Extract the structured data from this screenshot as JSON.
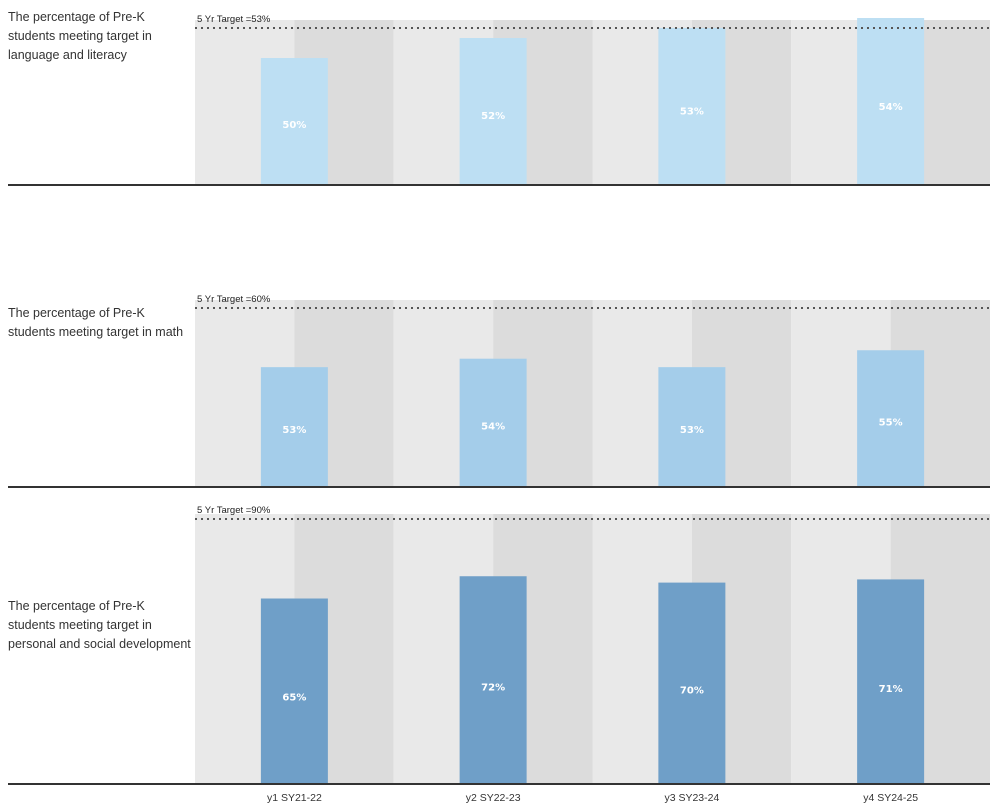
{
  "chart_data": [
    {
      "type": "bar",
      "title": "The percentage of Pre-K students meeting target in language and literacy",
      "target_label": "5 Yr Target =53%",
      "target": 53,
      "categories": [
        "y1 SY21-22",
        "y2 SY22-23",
        "y3 SY23-24",
        "y4 SY24-25"
      ],
      "values": [
        50,
        52,
        53,
        54
      ],
      "value_labels": [
        "50%",
        "52%",
        "53%",
        "54%"
      ],
      "color": "#bddff3"
    },
    {
      "type": "bar",
      "title": "The percentage of Pre-K students meeting target in math",
      "target_label": "5 Yr Target =60%",
      "target": 60,
      "categories": [
        "y1 SY21-22",
        "y2 SY22-23",
        "y3 SY23-24",
        "y4 SY24-25"
      ],
      "values": [
        53,
        54,
        53,
        55
      ],
      "value_labels": [
        "53%",
        "54%",
        "53%",
        "55%"
      ],
      "color": "#a4cdea"
    },
    {
      "type": "bar",
      "title": "The percentage of Pre-K students meeting target in personal and social development",
      "target_label": "5 Yr Target =90%",
      "target": 90,
      "categories": [
        "y1 SY21-22",
        "y2 SY22-23",
        "y3 SY23-24",
        "y4 SY24-25"
      ],
      "values": [
        65,
        72,
        70,
        71
      ],
      "value_labels": [
        "65%",
        "72%",
        "70%",
        "71%"
      ],
      "color": "#6f9fc8"
    }
  ],
  "x_tick_labels": [
    "y1 SY21-22",
    "y2 SY22-23",
    "y3 SY23-24",
    "y4 SY24-25"
  ],
  "colors": {
    "band_light": "#e9e9e9",
    "band_dark": "#dcdcdc",
    "axis": "#333333",
    "target_line": "#555555"
  }
}
